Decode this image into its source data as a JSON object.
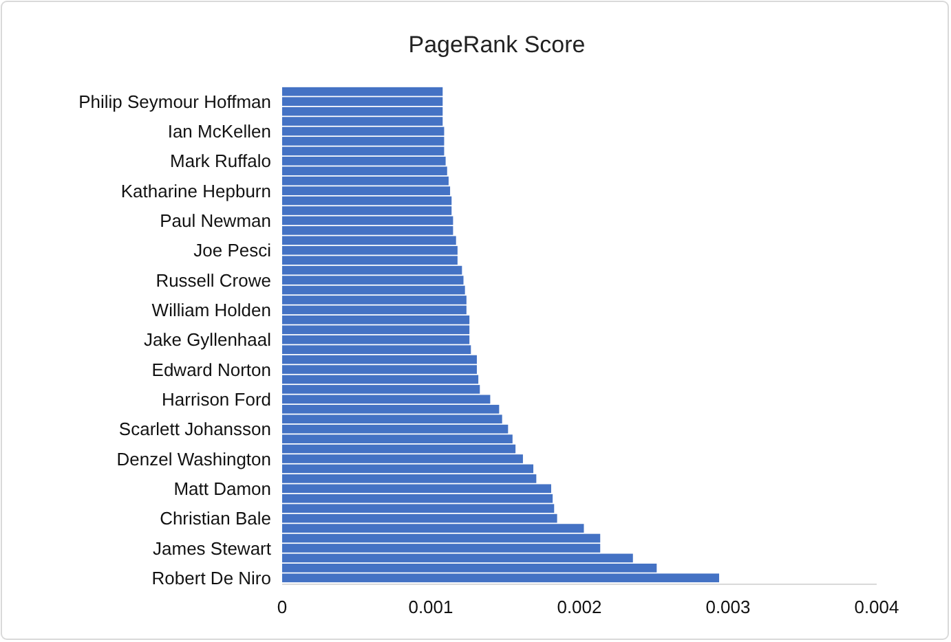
{
  "chart_data": {
    "type": "bar",
    "orientation": "horizontal",
    "title": "PageRank Score",
    "categories": [
      null,
      "Philip Seymour Hoffman",
      null,
      null,
      "Ian McKellen",
      null,
      null,
      "Mark Ruffalo",
      null,
      null,
      "Katharine Hepburn",
      null,
      null,
      "Paul Newman",
      null,
      null,
      "Joe Pesci",
      null,
      null,
      "Russell Crowe",
      null,
      null,
      "William Holden",
      null,
      null,
      "Jake Gyllenhaal",
      null,
      null,
      "Edward Norton",
      null,
      null,
      "Harrison Ford",
      null,
      null,
      "Scarlett Johansson",
      null,
      null,
      "Denzel Washington",
      null,
      null,
      "Matt Damon",
      null,
      null,
      "Christian Bale",
      null,
      null,
      "James Stewart",
      null,
      null,
      "Robert De Niro"
    ],
    "values": [
      0.00108,
      0.00108,
      0.00108,
      0.00108,
      0.00109,
      0.00109,
      0.00109,
      0.0011,
      0.00111,
      0.00112,
      0.00113,
      0.00114,
      0.00114,
      0.00115,
      0.00115,
      0.00117,
      0.00118,
      0.00118,
      0.00121,
      0.00122,
      0.00123,
      0.00124,
      0.00124,
      0.00126,
      0.00126,
      0.00126,
      0.00127,
      0.00131,
      0.00131,
      0.00132,
      0.00133,
      0.0014,
      0.00146,
      0.00148,
      0.00152,
      0.00155,
      0.00157,
      0.00162,
      0.00169,
      0.00171,
      0.00181,
      0.00182,
      0.00183,
      0.00185,
      0.00203,
      0.00214,
      0.00214,
      0.00236,
      0.00252,
      0.00294
    ],
    "color": "#4472c4",
    "xlim": [
      0,
      0.004
    ],
    "xticks": [
      0,
      0.001,
      0.002,
      0.003,
      0.004
    ],
    "grid": false
  }
}
